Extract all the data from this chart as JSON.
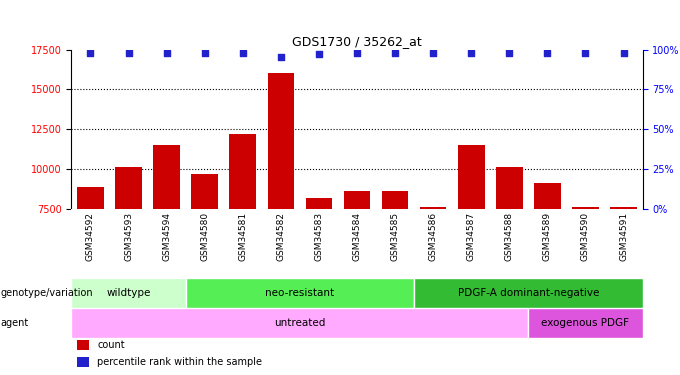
{
  "title": "GDS1730 / 35262_at",
  "samples": [
    "GSM34592",
    "GSM34593",
    "GSM34594",
    "GSM34580",
    "GSM34581",
    "GSM34582",
    "GSM34583",
    "GSM34584",
    "GSM34585",
    "GSM34586",
    "GSM34587",
    "GSM34588",
    "GSM34589",
    "GSM34590",
    "GSM34591"
  ],
  "counts": [
    8900,
    10100,
    11500,
    9700,
    12200,
    16000,
    8200,
    8600,
    8600,
    7600,
    11500,
    10100,
    9100,
    7600,
    7600
  ],
  "percentile_ranks": [
    98,
    98,
    98,
    98,
    98,
    95,
    97,
    98,
    98,
    98,
    98,
    98,
    98,
    98,
    98
  ],
  "ylim_left": [
    7500,
    17500
  ],
  "ylim_right": [
    0,
    100
  ],
  "yticks_left": [
    7500,
    10000,
    12500,
    15000,
    17500
  ],
  "yticks_right": [
    0,
    25,
    50,
    75,
    100
  ],
  "bar_color": "#cc0000",
  "dot_color": "#2222cc",
  "sample_bg": "#c8c8c8",
  "genotype_groups": [
    {
      "label": "wildtype",
      "start": 0,
      "end": 3,
      "color": "#ccffcc"
    },
    {
      "label": "neo-resistant",
      "start": 3,
      "end": 9,
      "color": "#55ee55"
    },
    {
      "label": "PDGF-A dominant-negative",
      "start": 9,
      "end": 15,
      "color": "#33bb33"
    }
  ],
  "agent_groups": [
    {
      "label": "untreated",
      "start": 0,
      "end": 12,
      "color": "#ffaaff"
    },
    {
      "label": "exogenous PDGF",
      "start": 12,
      "end": 15,
      "color": "#dd55dd"
    }
  ],
  "row_label_geno": "genotype/variation",
  "row_label_agent": "agent",
  "legend_items": [
    {
      "label": "count",
      "color": "#cc0000"
    },
    {
      "label": "percentile rank within the sample",
      "color": "#2222cc"
    }
  ]
}
